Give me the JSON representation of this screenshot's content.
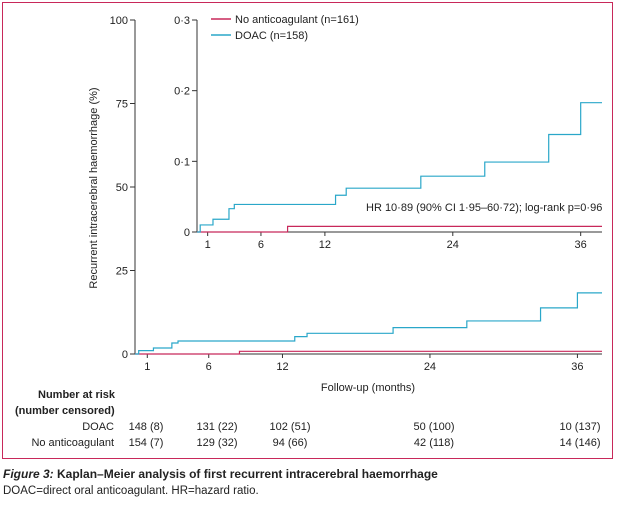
{
  "chart_data": {
    "type": "line",
    "subtype": "kaplan-meier",
    "ylabel": "Recurrent intracerebral haemorrhage (%)",
    "xlabel": "Follow-up (months)",
    "x_ticks": [
      1,
      6,
      12,
      24,
      36
    ],
    "y_ticks": [
      0,
      25,
      50,
      75,
      100
    ],
    "xlim": [
      0,
      38
    ],
    "ylim": [
      0,
      100
    ],
    "inset": {
      "y_ticks": [
        0,
        0.1,
        0.2,
        0.3
      ],
      "y_tick_labels": [
        "0",
        "0·1",
        "0·2",
        "0·3"
      ],
      "x_ticks": [
        1,
        6,
        12,
        24,
        36
      ],
      "xlim": [
        0,
        38
      ],
      "ylim": [
        0,
        0.3
      ],
      "annotation": "HR 10·89 (90% CI 1·95–60·72); log-rank p=0·96"
    },
    "legend": {
      "position": "top-left of inset"
    },
    "series": [
      {
        "name": "No anticoagulant (n=161)",
        "color": "#c8285a",
        "steps": [
          [
            0,
            0
          ],
          [
            8.5,
            0.8
          ],
          [
            38,
            0.8
          ]
        ]
      },
      {
        "name": "DOAC (n=158)",
        "color": "#2aa7c9",
        "steps": [
          [
            0,
            0
          ],
          [
            0.3,
            1
          ],
          [
            1.5,
            1.8
          ],
          [
            3,
            3.3
          ],
          [
            3.5,
            3.9
          ],
          [
            13,
            5.2
          ],
          [
            14,
            6.2
          ],
          [
            21,
            7.9
          ],
          [
            27,
            9.9
          ],
          [
            33,
            13.8
          ],
          [
            36,
            18.3
          ],
          [
            38,
            18.3
          ]
        ]
      }
    ]
  },
  "risk_table": {
    "heading_line1": "Number at risk",
    "heading_line2": "(number censored)",
    "rows": [
      {
        "label": "DOAC",
        "values": [
          "148 (8)",
          "131 (22)",
          "102 (51)",
          "50 (100)",
          "10 (137)"
        ]
      },
      {
        "label": "No anticoagulant",
        "values": [
          "154 (7)",
          "129 (32)",
          "94 (66)",
          "42 (118)",
          "14 (146)"
        ]
      }
    ]
  },
  "caption": {
    "figure_label": "Figure 3:",
    "title": "Kaplan–Meier analysis of first recurrent intracerebral haemorrhage",
    "note": "DOAC=direct oral anticoagulant. HR=hazard ratio."
  }
}
